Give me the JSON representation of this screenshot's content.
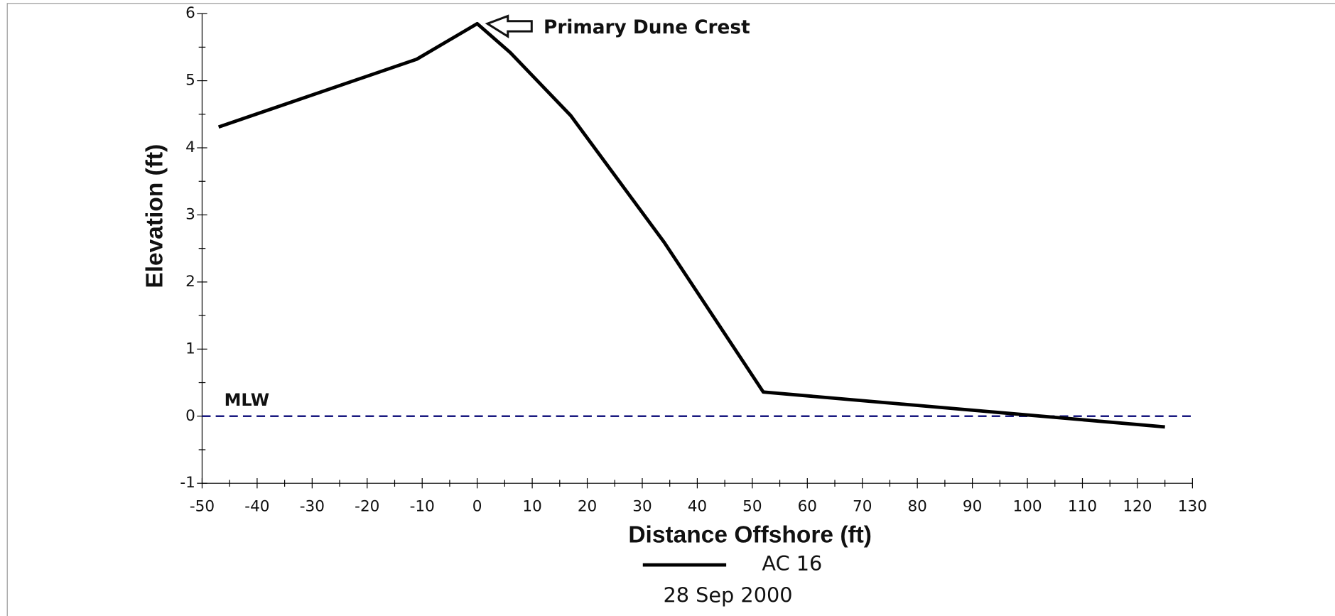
{
  "chart_data": {
    "type": "line",
    "title": null,
    "subtitle": "28 Sep 2000",
    "x_label": "Distance Offshore (ft)",
    "y_label": "Elevation (ft)",
    "x": [
      -47,
      -11,
      0,
      6,
      17,
      34,
      52,
      125
    ],
    "series": [
      {
        "name": "AC 16",
        "color": "#000000",
        "values": [
          4.31,
          5.32,
          5.85,
          5.42,
          4.48,
          2.59,
          0.36,
          -0.16
        ]
      }
    ],
    "xlim": [
      -50,
      130
    ],
    "xticks": [
      -50,
      -40,
      -30,
      -20,
      -10,
      0,
      10,
      20,
      30,
      40,
      50,
      60,
      70,
      80,
      90,
      100,
      110,
      120,
      130
    ],
    "ylim": [
      -1,
      6
    ],
    "yticks": [
      -1,
      0,
      1,
      2,
      3,
      4,
      5,
      6
    ],
    "reference_lines": [
      {
        "y": 0,
        "label": "MLW",
        "color": "#1a1a80",
        "dash": true
      }
    ],
    "annotations": [
      {
        "text": "Primary Dune Crest",
        "point": 2
      }
    ],
    "grid": false,
    "legend": "bottom"
  }
}
